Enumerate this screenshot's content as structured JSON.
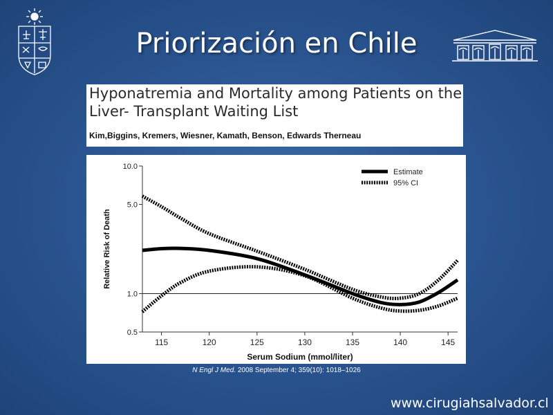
{
  "slide": {
    "title": "Priorización en Chile",
    "website": "www.cirugiahsalvador.cl"
  },
  "paper": {
    "title_line1": "Hyponatremia and Mortality among Patients on the",
    "title_line2": "Liver- Transplant Waiting List",
    "authors": "Kim,Biggins, Kremers, Wiesner, Kamath, Benson, Edwards Therneau"
  },
  "citation": {
    "journal": "N Engl J Med.",
    "details": " 2008 September 4; 359(10): 1018–1026"
  },
  "chart_data": {
    "type": "line",
    "xlabel": "Serum Sodium (mmol/liter)",
    "ylabel": "Relative Risk of Death",
    "x_ticks": [
      115,
      120,
      125,
      130,
      135,
      140,
      145
    ],
    "y_ticks": [
      10.0,
      5.0,
      1.0,
      0.5
    ],
    "y_tick_labels": [
      "10.0",
      "5.0",
      "1.0",
      "0.5"
    ],
    "xlim": [
      113,
      146
    ],
    "ylim": [
      0.5,
      10.0
    ],
    "y_scale": "log",
    "reference_line": 1.0,
    "legend": [
      "Estimate",
      "95% CI"
    ],
    "legend_position": "top-right",
    "series": [
      {
        "name": "Estimate",
        "style": "solid",
        "x": [
          113,
          115,
          117,
          120,
          125,
          130,
          135,
          138,
          140,
          142,
          144,
          146
        ],
        "y": [
          2.18,
          2.25,
          2.26,
          2.18,
          1.88,
          1.4,
          1.0,
          0.85,
          0.82,
          0.86,
          1.02,
          1.28
        ]
      },
      {
        "name": "95% CI",
        "style": "dotted",
        "x": [
          113,
          115,
          117,
          120,
          125,
          130,
          135,
          138,
          140,
          142,
          144,
          146
        ],
        "y": [
          5.8,
          4.8,
          3.9,
          2.95,
          2.15,
          1.55,
          1.08,
          0.94,
          0.92,
          1.0,
          1.28,
          1.82
        ]
      },
      {
        "name": "95% CI",
        "style": "dotted",
        "x": [
          113,
          115,
          117,
          120,
          125,
          130,
          135,
          138,
          140,
          142,
          144,
          146
        ],
        "y": [
          0.72,
          0.96,
          1.22,
          1.5,
          1.62,
          1.38,
          0.92,
          0.77,
          0.73,
          0.74,
          0.8,
          0.92
        ]
      }
    ]
  }
}
